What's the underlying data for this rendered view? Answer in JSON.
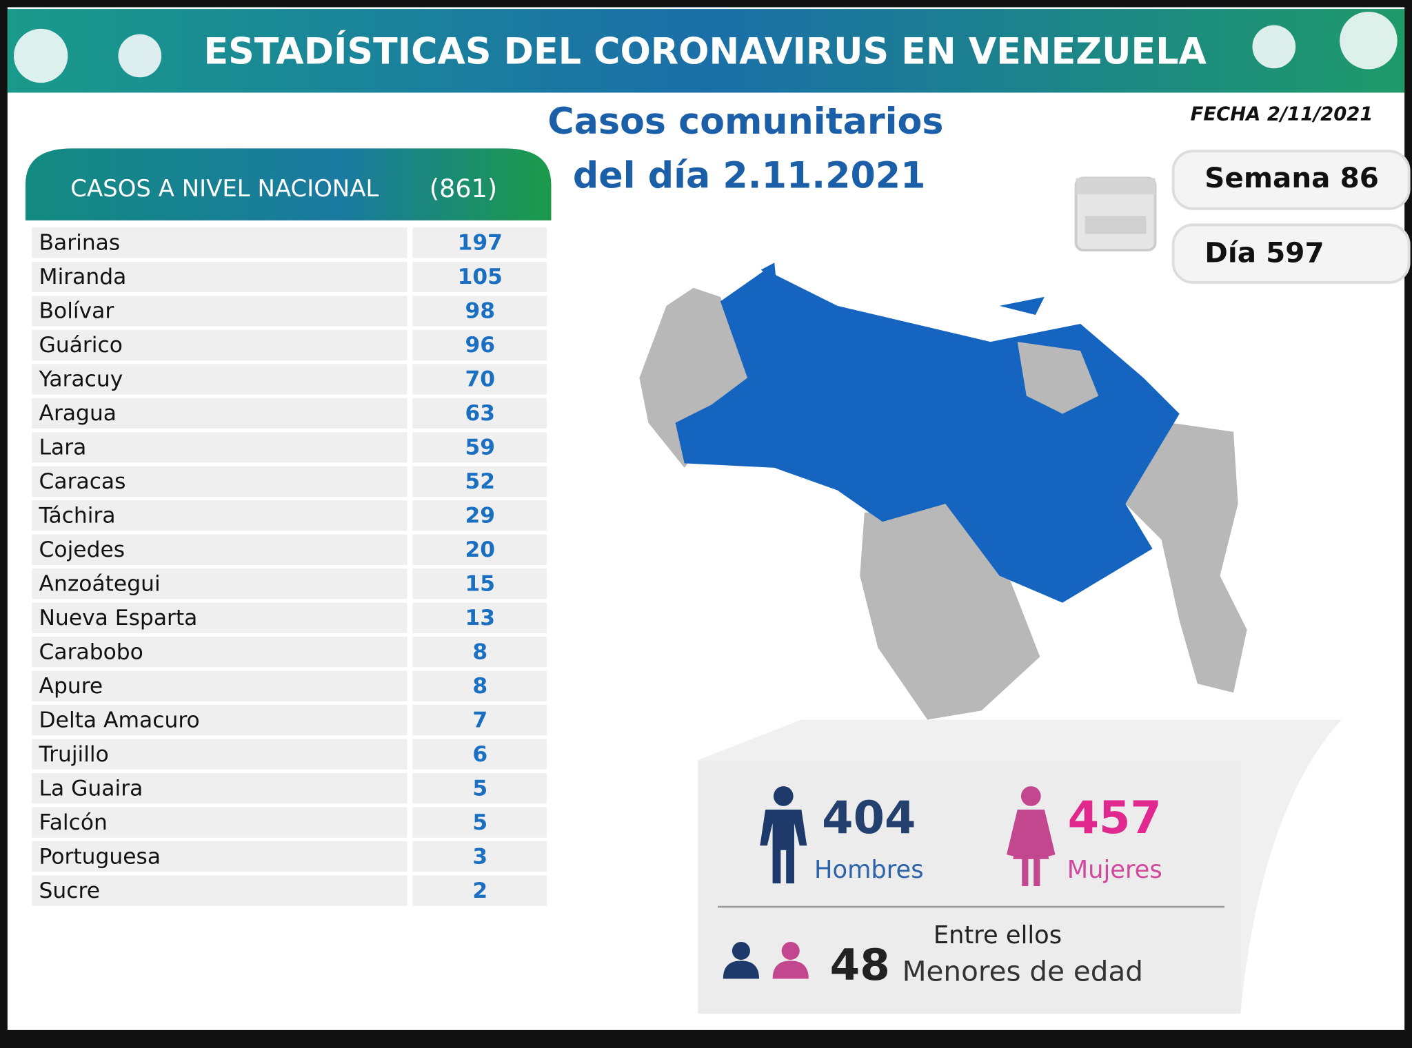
{
  "header": {
    "title": "ESTADÍSTICAS DEL CORONAVIRUS EN VENEZUELA"
  },
  "subtitle": [
    "Casos comunitarios",
    "del día 2.11.2021"
  ],
  "date": "FECHA 2/11/2021",
  "week": "Semana 86",
  "day": "Día 597",
  "table": {
    "title": "CASOS A NIVEL NACIONAL",
    "total": "(861)",
    "rows": [
      [
        "Barinas",
        197
      ],
      [
        "Miranda",
        105
      ],
      [
        "Bolívar",
        98
      ],
      [
        "Guárico",
        96
      ],
      [
        "Yaracuy",
        70
      ],
      [
        "Aragua",
        63
      ],
      [
        "Lara",
        59
      ],
      [
        "Caracas",
        52
      ],
      [
        "Táchira",
        29
      ],
      [
        "Cojedes",
        20
      ],
      [
        "Anzoátegui",
        15
      ],
      [
        "Nueva Esparta",
        13
      ],
      [
        "Carabobo",
        8
      ],
      [
        "Apure",
        8
      ],
      [
        "Delta Amacuro",
        7
      ],
      [
        "Trujillo",
        6
      ],
      [
        "La Guaira",
        5
      ],
      [
        "Falcón",
        5
      ],
      [
        "Portuguesa",
        3
      ],
      [
        "Sucre",
        2
      ]
    ]
  },
  "gender": {
    "men": {
      "value": 404,
      "label": "Hombres"
    },
    "women": {
      "value": 457,
      "label": "Mujeres"
    }
  },
  "minors": {
    "intro": "Entre ellos",
    "value": 48,
    "label": "Menores de edad"
  }
}
